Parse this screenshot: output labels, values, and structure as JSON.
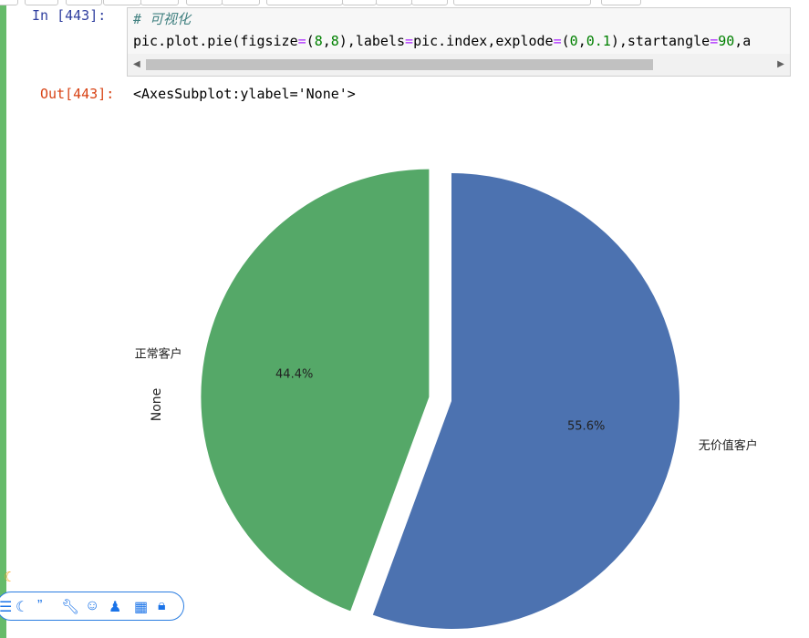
{
  "cell": {
    "in_prompt": "In  [443]:",
    "code_comment": "# 可视化",
    "code_pre": "pic.plot.pie(figsize",
    "code_eq1": "=",
    "code_p1": "(",
    "code_n1": "8",
    "code_c1": ",",
    "code_n2": "8",
    "code_p2": "),labels",
    "code_eq2": "=",
    "code_p3": "pic.index,explode",
    "code_eq3": "=",
    "code_p4": "(",
    "code_n3": "0",
    "code_c2": ",",
    "code_n4": "0.1",
    "code_p5": "),startangle",
    "code_eq4": "=",
    "code_n5": "90",
    "code_tail": ",a",
    "out_prompt": "Out[443]:",
    "out_text": "<AxesSubplot:ylabel='None'>"
  },
  "chart_data": {
    "type": "pie",
    "ylabel": "None",
    "startangle": 90,
    "slices": [
      {
        "label": "正常客户",
        "value": 44.4,
        "pct_label": "44.4%",
        "color": "#55a868",
        "explode": 0.1
      },
      {
        "label": "无价值客户",
        "value": 55.6,
        "pct_label": "55.6%",
        "color": "#4c72b0",
        "explode": 0
      }
    ]
  },
  "floating_toolbar": {
    "icons": [
      "chinese-char-icon",
      "moon-icon",
      "quote-icon",
      "wrench-icon",
      "smiley-icon",
      "shirt-icon",
      "grid-icon",
      "lock-icon"
    ]
  }
}
